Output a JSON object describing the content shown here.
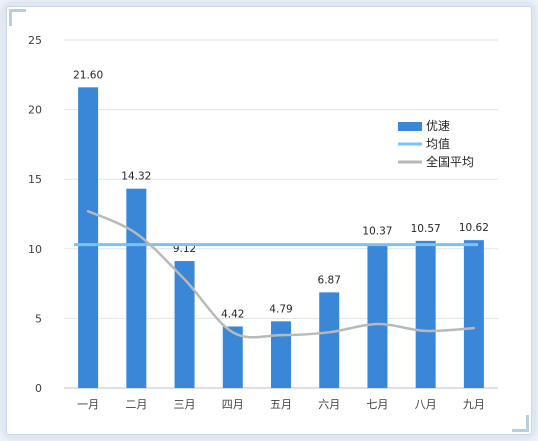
{
  "chart_data": {
    "type": "bar",
    "categories": [
      "一月",
      "二月",
      "三月",
      "四月",
      "五月",
      "六月",
      "七月",
      "八月",
      "九月"
    ],
    "series": [
      {
        "name": "优速",
        "type": "bar",
        "color": "#3a87d8",
        "values": [
          21.6,
          14.32,
          9.12,
          4.42,
          4.79,
          6.87,
          10.37,
          10.57,
          10.62
        ],
        "labels": [
          "21.60",
          "14.32",
          "9.12",
          "4.42",
          "4.79",
          "6.87",
          "10.37",
          "10.57",
          "10.62"
        ]
      },
      {
        "name": "均值",
        "type": "line",
        "color": "#7ec3f0",
        "values": [
          10.3,
          10.3,
          10.3,
          10.3,
          10.3,
          10.3,
          10.3,
          10.3,
          10.3
        ]
      },
      {
        "name": "全国平均",
        "type": "line",
        "color": "#b9b9b9",
        "values": [
          12.7,
          11.1,
          7.8,
          4.0,
          3.8,
          4.0,
          4.6,
          4.1,
          4.3
        ]
      }
    ],
    "yticks": [
      "0",
      "5",
      "10",
      "15",
      "20",
      "25"
    ],
    "ylim": [
      0,
      25
    ],
    "grid": true,
    "legend": "right"
  }
}
